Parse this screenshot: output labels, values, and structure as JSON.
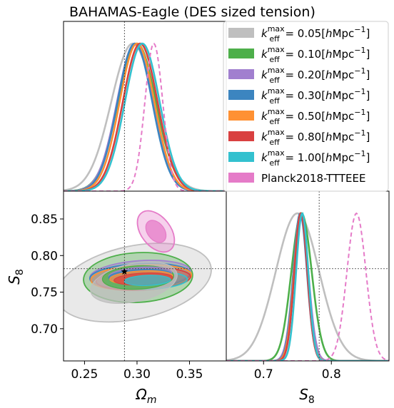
{
  "figure": {
    "title": "BAHAMAS-Eagle (DES sized tension)"
  },
  "legend": {
    "placement": "top-right",
    "entries": [
      {
        "prefix": "k",
        "sub": "eff",
        "sup": "max",
        "value": "= 0.05[",
        "unit": "hMpc",
        "exp": "−1",
        "close": "]",
        "color": "#bfbfbf"
      },
      {
        "prefix": "k",
        "sub": "eff",
        "sup": "max",
        "value": "= 0.10[",
        "unit": "hMpc",
        "exp": "−1",
        "close": "]",
        "color": "#4daf4a"
      },
      {
        "prefix": "k",
        "sub": "eff",
        "sup": "max",
        "value": "= 0.20[",
        "unit": "hMpc",
        "exp": "−1",
        "close": "]",
        "color": "#a17fcf"
      },
      {
        "prefix": "k",
        "sub": "eff",
        "sup": "max",
        "value": "= 0.30[",
        "unit": "hMpc",
        "exp": "−1",
        "close": "]",
        "color": "#3c85c0"
      },
      {
        "prefix": "k",
        "sub": "eff",
        "sup": "max",
        "value": "= 0.50[",
        "unit": "hMpc",
        "exp": "−1",
        "close": "]",
        "color": "#ff9133"
      },
      {
        "prefix": "k",
        "sub": "eff",
        "sup": "max",
        "value": "= 0.80[",
        "unit": "hMpc",
        "exp": "−1",
        "close": "]",
        "color": "#d94040"
      },
      {
        "prefix": "k",
        "sub": "eff",
        "sup": "max",
        "value": "= 1.00[",
        "unit": "hMpc",
        "exp": "−1",
        "close": "]",
        "color": "#33c1cf"
      },
      {
        "label": "Planck2018-TTTEEE",
        "color": "#e57bc8"
      }
    ]
  },
  "chart_data": [
    {
      "type": "line",
      "panel": "Omega_m marginal",
      "xlabel": "",
      "ylabel": "",
      "xlim": [
        0.23,
        0.385
      ],
      "ylim": [
        0,
        1.15
      ],
      "reference_x": 0.288,
      "series": [
        {
          "color": "#bfbfbf",
          "mean": 0.296,
          "sigma": 0.0205,
          "dashed": false
        },
        {
          "color": "#4daf4a",
          "mean": 0.3,
          "sigma": 0.018,
          "dashed": false
        },
        {
          "color": "#a17fcf",
          "mean": 0.298,
          "sigma": 0.017,
          "dashed": false
        },
        {
          "color": "#3c85c0",
          "mean": 0.298,
          "sigma": 0.0165,
          "dashed": false
        },
        {
          "color": "#ff9133",
          "mean": 0.3,
          "sigma": 0.0165,
          "dashed": false
        },
        {
          "color": "#d94040",
          "mean": 0.303,
          "sigma": 0.0165,
          "dashed": false
        },
        {
          "color": "#33c1cf",
          "mean": 0.305,
          "sigma": 0.0165,
          "dashed": false
        },
        {
          "color": "#e57bc8",
          "mean": 0.316,
          "sigma": 0.0085,
          "dashed": true
        }
      ]
    },
    {
      "type": "contour",
      "panel": "Omega_m vs S8",
      "xlabel": "Ω_m",
      "ylabel": "S_8",
      "xlim": [
        0.23,
        0.385
      ],
      "ylim": [
        0.656,
        0.888
      ],
      "xticks": [
        0.25,
        0.3,
        0.35
      ],
      "xtick_labels": [
        "0.25",
        "0.30",
        "0.35"
      ],
      "yticks": [
        0.7,
        0.75,
        0.8,
        0.85
      ],
      "ytick_labels": [
        "0.70",
        "0.75",
        "0.80",
        "0.85"
      ],
      "reference_x": 0.288,
      "reference_y": 0.782,
      "fiducial_point": [
        0.288,
        0.778
      ],
      "contours": [
        {
          "color": "#bfbfbf",
          "center": [
            0.297,
            0.763
          ],
          "r1": [
            0.042,
            0.026
          ],
          "r2": [
            0.075,
            0.05
          ],
          "rotation": -12
        },
        {
          "color": "#4daf4a",
          "center": [
            0.301,
            0.77
          ],
          "r1": [
            0.034,
            0.016
          ],
          "r2": [
            0.052,
            0.034
          ],
          "rotation": -3
        },
        {
          "color": "#a17fcf",
          "center": [
            0.303,
            0.774
          ],
          "r1": [
            0.03,
            0.01
          ],
          "r2": [
            0.048,
            0.019
          ],
          "rotation": -4
        },
        {
          "color": "#3c85c0",
          "center": [
            0.303,
            0.772
          ],
          "r1": [
            0.03,
            0.009
          ],
          "r2": [
            0.048,
            0.017
          ],
          "rotation": -3
        },
        {
          "color": "#ff9133",
          "center": [
            0.304,
            0.77
          ],
          "r1": [
            0.03,
            0.009
          ],
          "r2": [
            0.048,
            0.017
          ],
          "rotation": -3
        },
        {
          "color": "#d94040",
          "center": [
            0.306,
            0.768
          ],
          "r1": [
            0.028,
            0.008
          ],
          "r2": [
            0.045,
            0.015
          ],
          "rotation": -3
        },
        {
          "color": "#33c1cf",
          "center": [
            0.31,
            0.766
          ],
          "r1": [
            0.022,
            0.007
          ],
          "r2": [
            0.038,
            0.012
          ],
          "rotation": -2
        },
        {
          "color": "#e57bc8",
          "center": [
            0.318,
            0.833
          ],
          "r1": [
            0.008,
            0.017
          ],
          "r2": [
            0.014,
            0.032
          ],
          "rotation": -38
        }
      ]
    },
    {
      "type": "line",
      "panel": "S8 marginal",
      "xlabel": "S_8",
      "ylabel": "",
      "xlim": [
        0.645,
        0.885
      ],
      "ylim": [
        0,
        1.15
      ],
      "xticks": [
        0.7,
        0.8
      ],
      "xtick_labels": [
        "0.7",
        "0.8"
      ],
      "reference_x": 0.782,
      "series": [
        {
          "color": "#bfbfbf",
          "mean": 0.75,
          "sigma": 0.032,
          "dashed": false
        },
        {
          "color": "#4daf4a",
          "mean": 0.756,
          "sigma": 0.015,
          "dashed": false
        },
        {
          "color": "#a17fcf",
          "mean": 0.755,
          "sigma": 0.011,
          "dashed": false
        },
        {
          "color": "#3c85c0",
          "mean": 0.754,
          "sigma": 0.01,
          "dashed": false
        },
        {
          "color": "#ff9133",
          "mean": 0.755,
          "sigma": 0.01,
          "dashed": false
        },
        {
          "color": "#d94040",
          "mean": 0.755,
          "sigma": 0.0095,
          "dashed": false
        },
        {
          "color": "#33c1cf",
          "mean": 0.757,
          "sigma": 0.009,
          "dashed": false
        },
        {
          "color": "#e57bc8",
          "mean": 0.837,
          "sigma": 0.014,
          "dashed": true
        }
      ]
    }
  ]
}
